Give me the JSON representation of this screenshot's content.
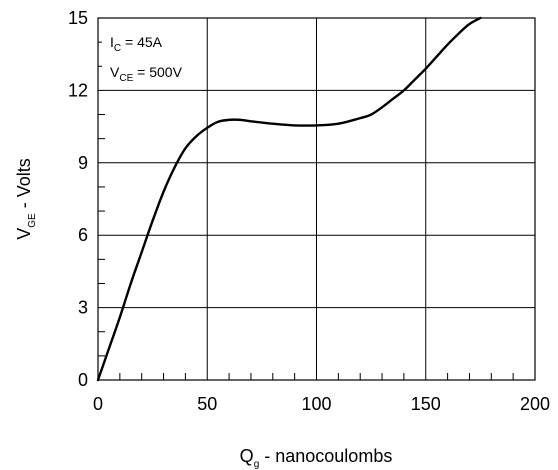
{
  "chart_data": {
    "type": "line",
    "title": "",
    "xlabel": {
      "main": "Q",
      "sub": "g",
      "rest": " - nanocoulombs"
    },
    "ylabel": {
      "main": "V",
      "sub": "GE",
      "rest": " - Volts"
    },
    "xlim": [
      0,
      200
    ],
    "ylim": [
      0,
      15
    ],
    "x_ticks": [
      0,
      50,
      100,
      150,
      200
    ],
    "x_tick_labels": [
      "0",
      "50",
      "100",
      "150",
      "200"
    ],
    "y_ticks": [
      0,
      3,
      6,
      9,
      12,
      15
    ],
    "y_tick_labels": [
      "0",
      "3",
      "6",
      "9",
      "12",
      "15"
    ],
    "grid": true,
    "annotations": {
      "ic": {
        "main": "I",
        "sub": "C",
        "rest": " = 45A"
      },
      "vce": {
        "main": "V",
        "sub": "CE",
        "rest": " = 500V"
      }
    },
    "series": [
      {
        "x": [
          0,
          5,
          10,
          15,
          20,
          25,
          30,
          35,
          40,
          45,
          50,
          55,
          60,
          65,
          70,
          80,
          90,
          100,
          110,
          120,
          125,
          130,
          135,
          140,
          145,
          150,
          155,
          160,
          165,
          170,
          175
        ],
        "y": [
          0,
          1.3,
          2.6,
          4.0,
          5.3,
          6.6,
          7.8,
          8.8,
          9.6,
          10.1,
          10.45,
          10.7,
          10.78,
          10.78,
          10.72,
          10.62,
          10.55,
          10.55,
          10.62,
          10.85,
          11.0,
          11.3,
          11.65,
          12.0,
          12.45,
          12.9,
          13.4,
          13.9,
          14.35,
          14.75,
          15.0
        ]
      }
    ]
  }
}
